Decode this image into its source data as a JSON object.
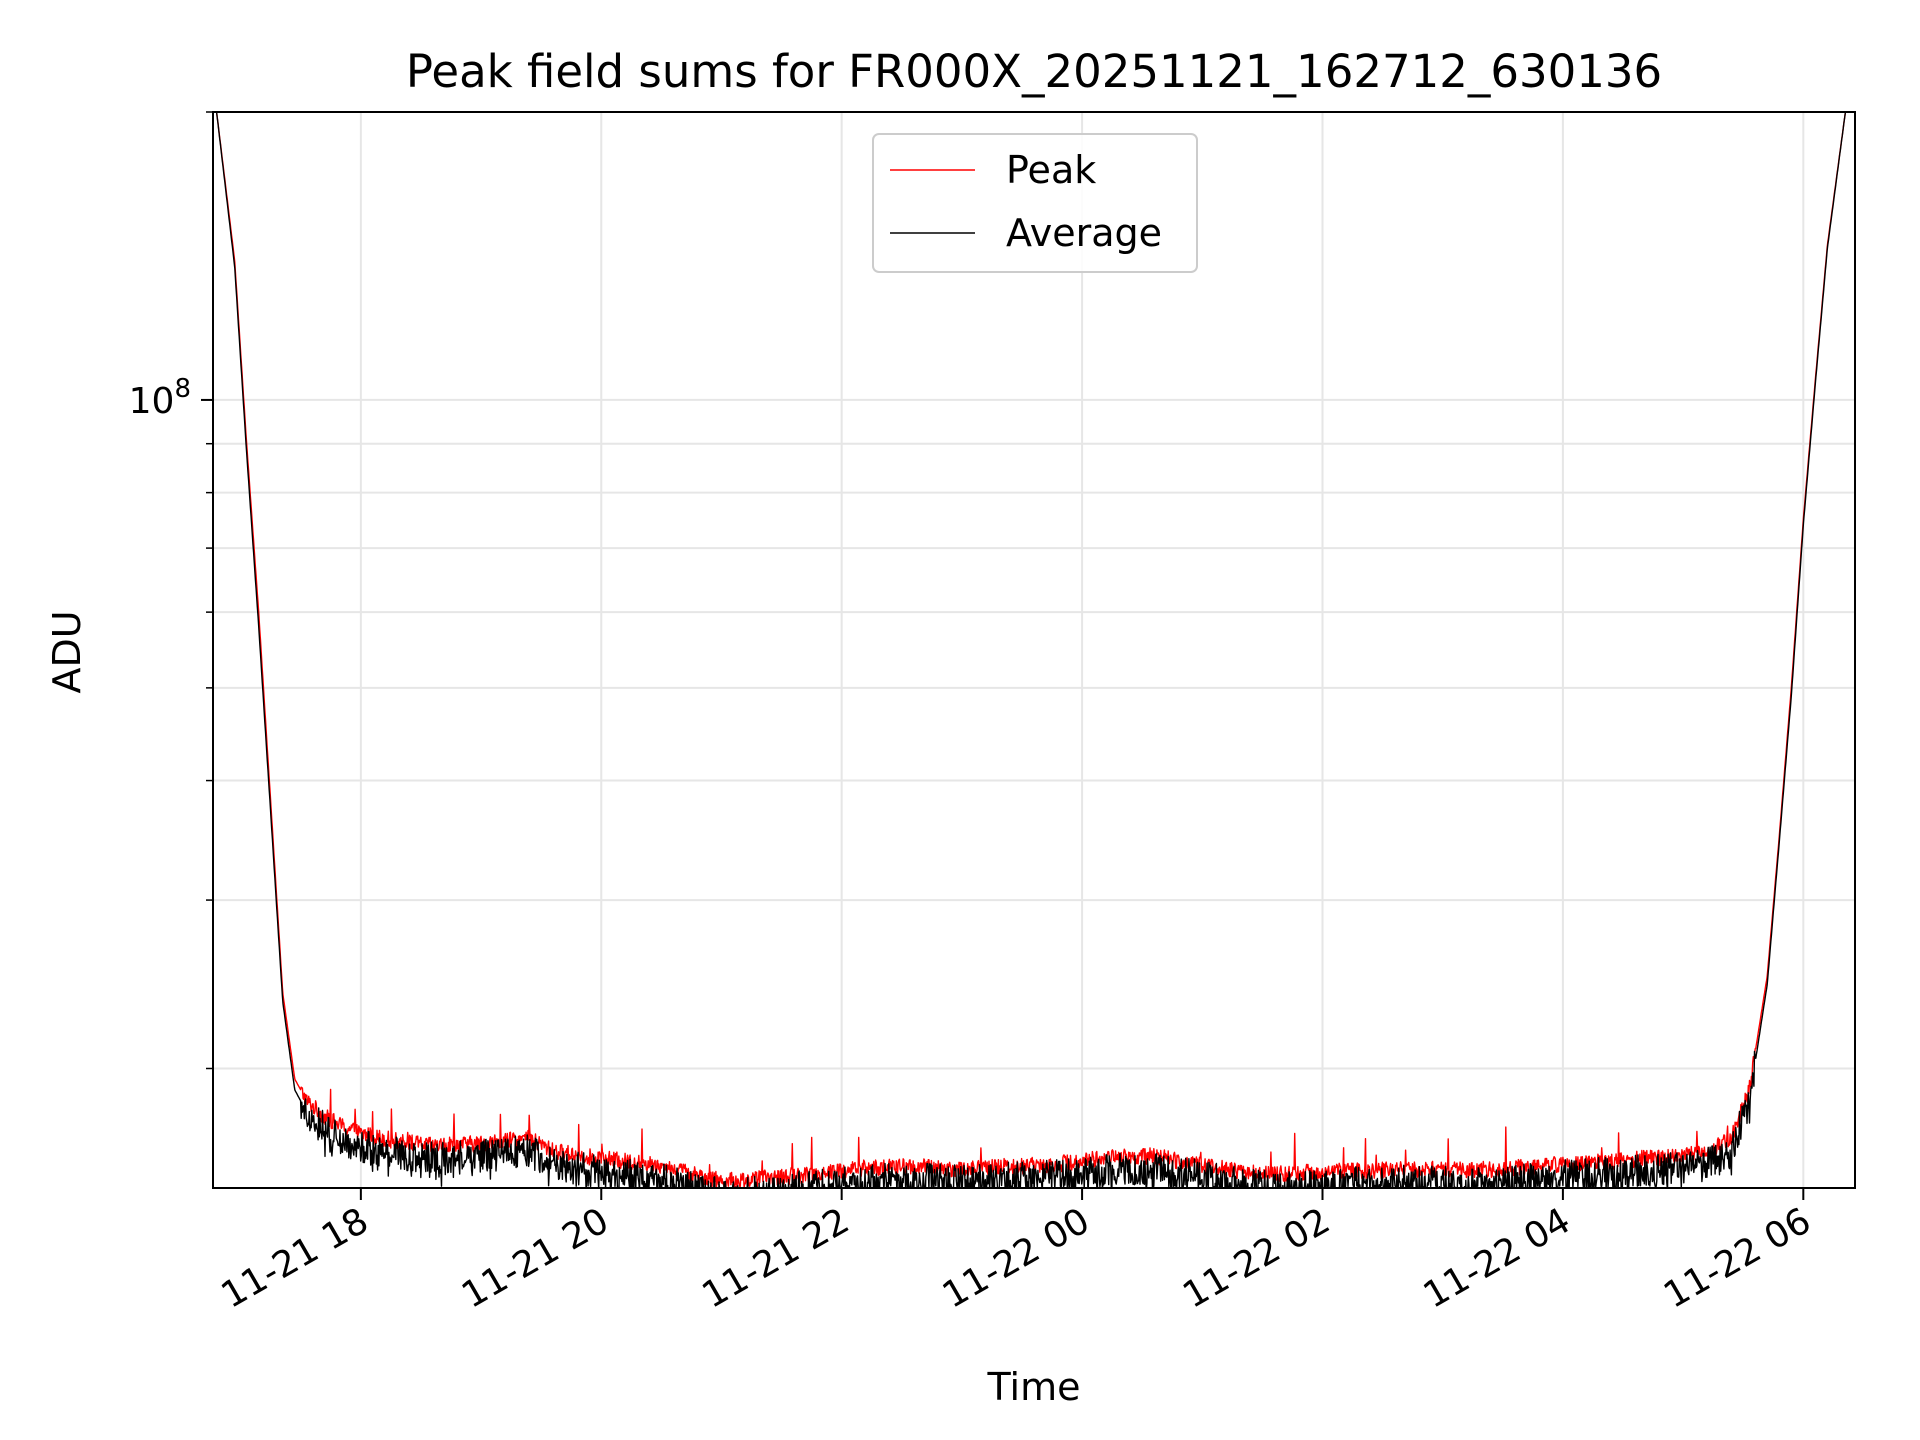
{
  "chart_data": {
    "type": "line",
    "title": "Peak field sums for FR000X_20251121_162712_630136",
    "xlabel": "Time",
    "ylabel": "ADU",
    "y_scale": "log",
    "ylim": [
      15000000,
      200000000
    ],
    "xlim_hours": [
      16.77,
      30.43
    ],
    "grid": true,
    "legend_position": "top-center",
    "y_major_ticks": [
      {
        "value": 100000000,
        "base": "10",
        "exp": "8"
      }
    ],
    "y_minor_ticks": [
      20000000,
      30000000,
      40000000,
      50000000,
      60000000,
      70000000,
      80000000,
      90000000,
      200000000
    ],
    "x_ticks": [
      {
        "hour": 18,
        "label": "11-21 18"
      },
      {
        "hour": 20,
        "label": "11-21 20"
      },
      {
        "hour": 22,
        "label": "11-21 22"
      },
      {
        "hour": 24,
        "label": "11-22 00"
      },
      {
        "hour": 26,
        "label": "11-22 02"
      },
      {
        "hour": 28,
        "label": "11-22 04"
      },
      {
        "hour": 30,
        "label": "11-22 06"
      }
    ],
    "series": [
      {
        "name": "Peak",
        "color": "#ff0000",
        "noise_amplitude": 0.02,
        "x": [
          16.8,
          16.95,
          17.05,
          17.15,
          17.25,
          17.35,
          17.45,
          17.55,
          17.7,
          17.85,
          18.0,
          18.3,
          18.6,
          19.0,
          19.4,
          19.6,
          20.0,
          20.4,
          20.8,
          21.0,
          21.2,
          21.5,
          21.8,
          22.2,
          22.6,
          23.0,
          23.4,
          23.8,
          24.2,
          24.6,
          25.0,
          25.2,
          25.4,
          25.6,
          26.0,
          26.4,
          26.8,
          27.2,
          27.6,
          28.0,
          28.4,
          28.8,
          29.2,
          29.4,
          29.55,
          29.7,
          29.8,
          29.9,
          30.0,
          30.1,
          30.2,
          30.35
        ],
        "values": [
          200000000,
          140000000,
          90000000,
          60000000,
          38000000,
          24000000,
          19500000,
          18500000,
          17800000,
          17400000,
          17100000,
          16800000,
          16600000,
          16700000,
          16900000,
          16400000,
          16100000,
          15900000,
          15500000,
          15250000,
          15300000,
          15400000,
          15550000,
          15750000,
          15800000,
          15700000,
          15800000,
          15900000,
          16150000,
          16200000,
          15850000,
          15700000,
          15550000,
          15500000,
          15600000,
          15650000,
          15700000,
          15650000,
          15750000,
          15900000,
          16000000,
          16150000,
          16350000,
          16900000,
          19000000,
          25000000,
          35000000,
          50000000,
          75000000,
          105000000,
          145000000,
          200000000
        ]
      },
      {
        "name": "Average",
        "color": "#000000",
        "noise_amplitude": 0.04,
        "x": [
          16.8,
          16.95,
          17.05,
          17.15,
          17.25,
          17.35,
          17.45,
          17.55,
          17.7,
          17.85,
          18.0,
          18.3,
          18.6,
          19.0,
          19.4,
          19.6,
          20.0,
          20.4,
          20.8,
          21.0,
          21.2,
          21.5,
          21.8,
          22.2,
          22.6,
          23.0,
          23.4,
          23.8,
          24.2,
          24.6,
          25.0,
          25.2,
          25.4,
          25.6,
          26.0,
          26.4,
          26.8,
          27.2,
          27.6,
          28.0,
          28.4,
          28.8,
          29.2,
          29.4,
          29.55,
          29.7,
          29.8,
          29.9,
          30.0,
          30.1,
          30.2,
          30.35
        ],
        "values": [
          200000000,
          138000000,
          88000000,
          58000000,
          37000000,
          23500000,
          19000000,
          18000000,
          17300000,
          16900000,
          16600000,
          16300000,
          16100000,
          16200000,
          16400000,
          15900000,
          15600000,
          15400000,
          15000000,
          14800000,
          14850000,
          14950000,
          15100000,
          15300000,
          15350000,
          15250000,
          15350000,
          15450000,
          15700000,
          15750000,
          15400000,
          15250000,
          15100000,
          15050000,
          15150000,
          15200000,
          15250000,
          15200000,
          15300000,
          15450000,
          15550000,
          15700000,
          15900000,
          16400000,
          18500000,
          24500000,
          34500000,
          49000000,
          74000000,
          104000000,
          144000000,
          200000000
        ]
      }
    ]
  }
}
